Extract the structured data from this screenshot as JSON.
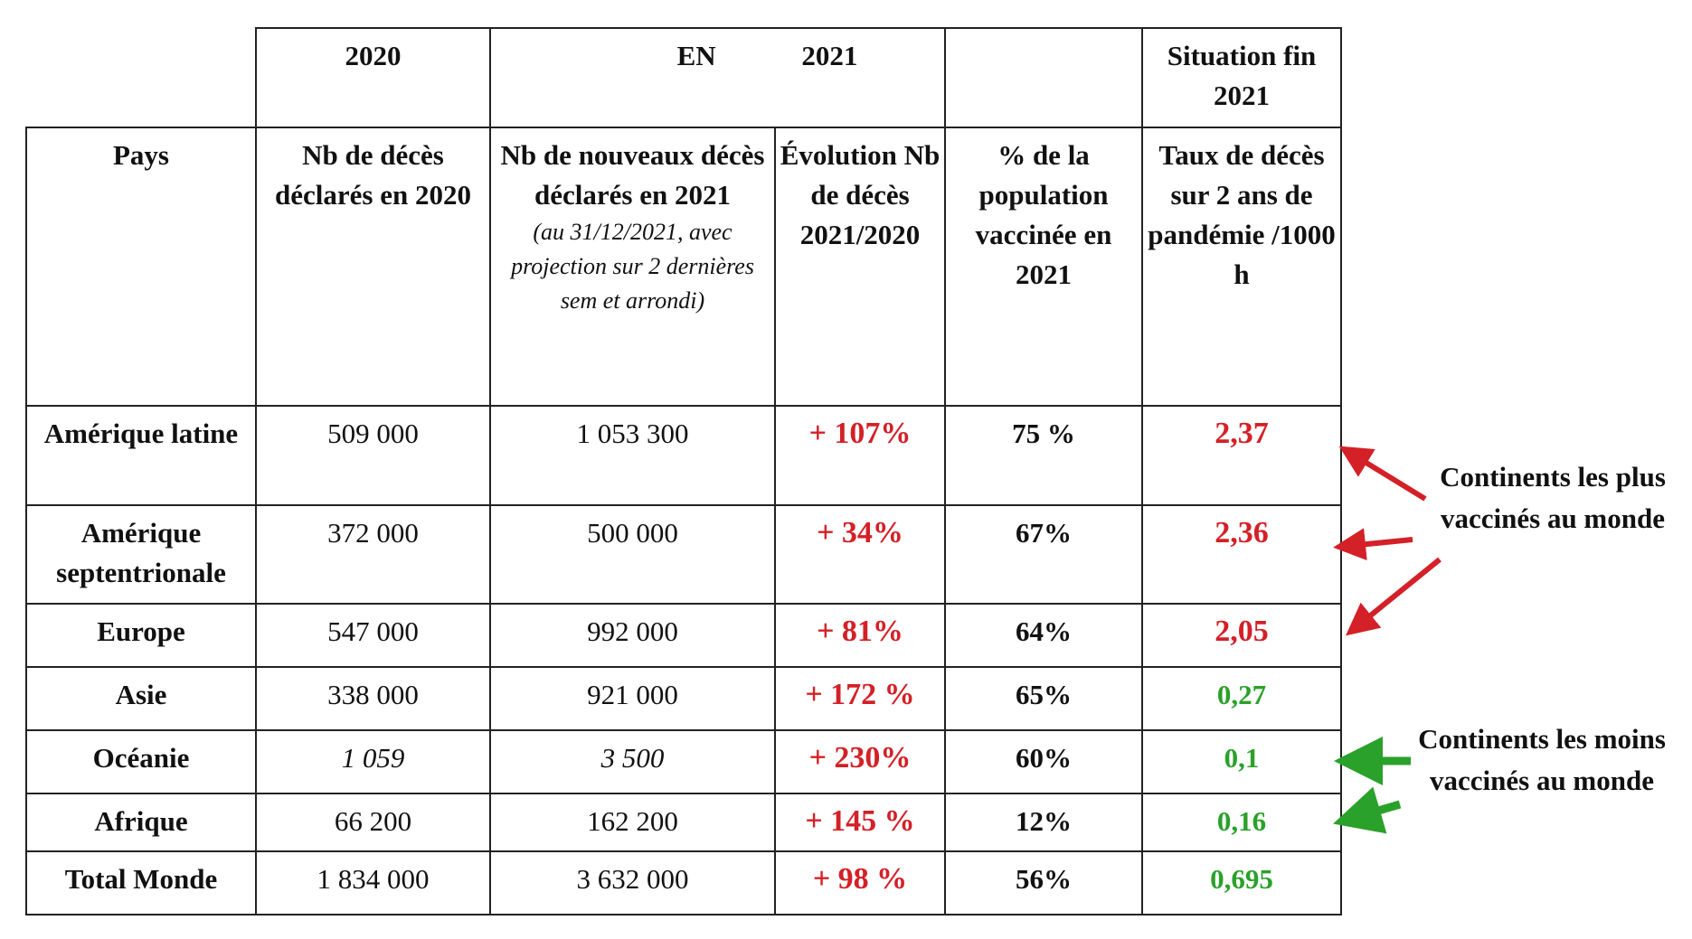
{
  "top_header": {
    "y2020": "2020",
    "en": "EN",
    "y2021": "2021",
    "situation": "Situation fin 2021"
  },
  "columns": [
    {
      "label": "Pays"
    },
    {
      "label": "Nb de décès déclarés en 2020"
    },
    {
      "label": "Nb de nouveaux décès déclarés en 2021",
      "note": "(au 31/12/2021, avec projection sur 2 dernières sem et arrondi)"
    },
    {
      "label": "Évolution Nb de décès 2021/2020"
    },
    {
      "label": "% de la population vaccinée en 2021"
    },
    {
      "label": "Taux de décès sur 2 ans de pandémie /1000 h"
    }
  ],
  "rows": [
    {
      "pays": "Amérique latine",
      "d2020": "509 000",
      "d2021": "1 053 300",
      "evol": "+ 107%",
      "vacc": "75 %",
      "taux": "2,37",
      "taux_color": "red"
    },
    {
      "pays": "Amérique septentrionale",
      "d2020": "372 000",
      "d2021": "500 000",
      "evol": "+ 34%",
      "vacc": "67%",
      "taux": "2,36",
      "taux_color": "red"
    },
    {
      "pays": "Europe",
      "d2020": "547 000",
      "d2021": "992 000",
      "evol": "+ 81%",
      "vacc": "64%",
      "taux": "2,05",
      "taux_color": "red"
    },
    {
      "pays": "Asie",
      "d2020": "338 000",
      "d2021": "921 000",
      "evol": "+ 172 %",
      "vacc": "65%",
      "taux": "0,27",
      "taux_color": "green"
    },
    {
      "pays": "Océanie",
      "d2020": "1 059",
      "d2021": "3 500",
      "evol": "+ 230%",
      "vacc": "60%",
      "taux": "0,1",
      "taux_color": "green"
    },
    {
      "pays": "Afrique",
      "d2020": "66 200",
      "d2021": "162 200",
      "evol": "+ 145 %",
      "vacc": "12%",
      "taux": "0,16",
      "taux_color": "green"
    },
    {
      "pays": "Total Monde",
      "d2020": "1 834 000",
      "d2021": "3 632 000",
      "evol": "+ 98 %",
      "vacc": "56%",
      "taux": "0,695",
      "taux_color": "green"
    }
  ],
  "annotations": {
    "most": "Continents les plus vaccinés au monde",
    "least": "Continents les moins vaccinés au monde"
  },
  "colors": {
    "red": "#d42027",
    "green": "#2aa12a"
  }
}
